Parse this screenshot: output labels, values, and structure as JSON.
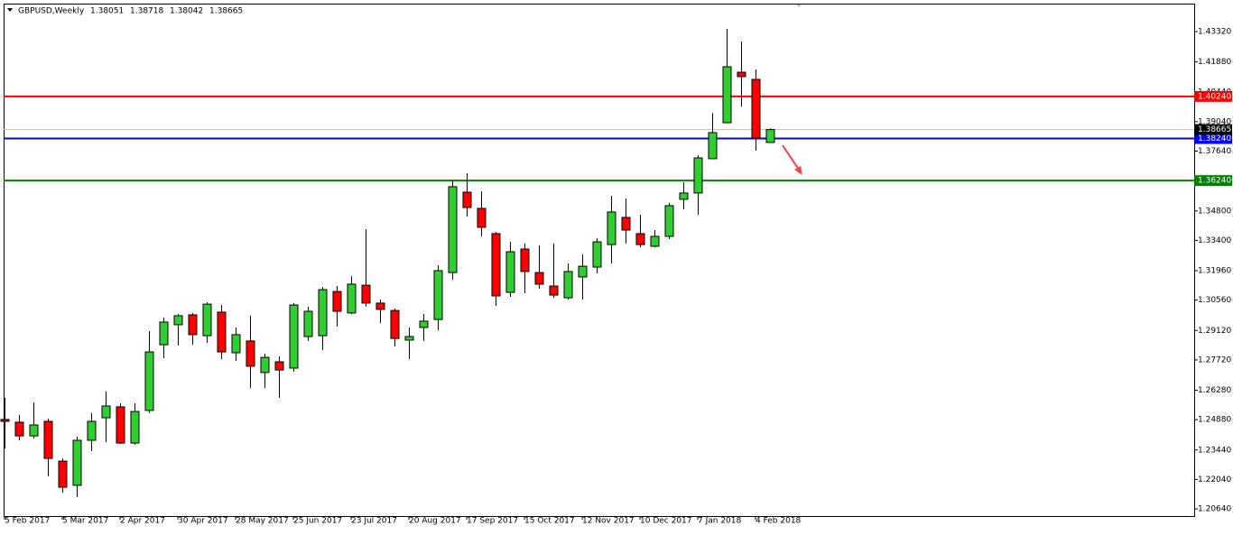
{
  "chart_data": {
    "type": "candlestick",
    "title": "GBPUSD,Weekly",
    "title_ohlc": [
      1.38051,
      1.38718,
      1.38042,
      1.38665
    ],
    "categories": [
      "5 Feb 2017",
      null,
      null,
      null,
      "5 Mar 2017",
      null,
      null,
      null,
      "2 Apr 2017",
      null,
      null,
      null,
      "30 Apr 2017",
      null,
      null,
      null,
      "28 May 2017",
      null,
      null,
      null,
      "25 Jun 2017",
      null,
      null,
      null,
      "23 Jul 2017",
      null,
      null,
      null,
      "20 Aug 2017",
      null,
      null,
      null,
      "17 Sep 2017",
      null,
      null,
      null,
      "15 Oct 2017",
      null,
      null,
      null,
      "12 Nov 2017",
      null,
      null,
      null,
      "10 Dec 2017",
      null,
      null,
      null,
      "7 Jan 2018",
      null,
      null,
      null,
      "4 Feb 2018",
      null
    ],
    "open": [
      1.2489,
      1.2476,
      1.2411,
      1.248,
      1.2291,
      1.2176,
      1.239,
      1.2497,
      1.2549,
      1.2377,
      1.2532,
      1.2844,
      1.2939,
      1.2986,
      1.2887,
      1.2999,
      1.2806,
      1.2862,
      1.2712,
      1.2763,
      1.2733,
      1.2883,
      1.2887,
      1.3097,
      1.2995,
      1.3127,
      1.3042,
      1.3007,
      1.2866,
      1.2926,
      1.2964,
      1.3187,
      1.3569,
      1.3492,
      1.3372,
      1.3093,
      1.3299,
      1.3187,
      1.3123,
      1.3067,
      1.3166,
      1.3213,
      1.332,
      1.3449,
      1.3372,
      1.3312,
      1.3359,
      1.3535,
      1.3565,
      1.3728,
      1.3899,
      1.4139,
      1.4105,
      1.38051
    ],
    "high": [
      1.2592,
      1.251,
      1.257,
      1.2493,
      1.2304,
      1.2407,
      1.2519,
      1.2622,
      1.2566,
      1.2566,
      1.2909,
      1.2973,
      1.299,
      1.2995,
      1.3046,
      1.3033,
      1.2926,
      1.2982,
      1.2801,
      1.2789,
      1.3042,
      1.3025,
      1.3119,
      1.3123,
      1.317,
      1.3393,
      1.3059,
      1.3016,
      1.2926,
      1.299,
      1.3222,
      1.3625,
      1.3659,
      1.3573,
      1.338,
      1.3333,
      1.3325,
      1.3316,
      1.3325,
      1.323,
      1.3273,
      1.335,
      1.3552,
      1.3539,
      1.3462,
      1.3389,
      1.3518,
      1.3616,
      1.3745,
      1.3946,
      1.4345,
      1.4285,
      1.4152,
      1.38718
    ],
    "low": [
      1.2351,
      1.239,
      1.2399,
      1.2219,
      1.2141,
      1.212,
      1.2339,
      1.2381,
      1.2373,
      1.2369,
      1.2519,
      1.278,
      1.284,
      1.2844,
      1.2853,
      1.2776,
      1.2767,
      1.2639,
      1.2639,
      1.2592,
      1.2716,
      1.2862,
      1.2819,
      1.293,
      1.299,
      1.3025,
      1.2947,
      1.2836,
      1.2776,
      1.2862,
      1.2913,
      1.3153,
      1.3453,
      1.3359,
      1.3029,
      1.3072,
      1.3089,
      1.311,
      1.3067,
      1.3059,
      1.3059,
      1.3183,
      1.323,
      1.3325,
      1.3307,
      1.3307,
      1.3346,
      1.3488,
      1.3462,
      1.3728,
      1.3899,
      1.3976,
      1.3766,
      1.38042
    ],
    "close": [
      1.248,
      1.2411,
      1.2463,
      1.2304,
      1.2167,
      1.239,
      1.248,
      1.2553,
      1.2377,
      1.2527,
      1.281,
      1.2952,
      1.2982,
      1.2892,
      1.3037,
      1.281,
      1.2892,
      1.2742,
      1.2784,
      1.2724,
      1.3033,
      1.3003,
      1.3106,
      1.3003,
      1.3132,
      1.3042,
      1.3012,
      1.2874,
      1.2883,
      1.2956,
      1.3196,
      1.3595,
      1.3496,
      1.3402,
      1.3076,
      1.3286,
      1.3192,
      1.3132,
      1.308,
      1.3192,
      1.3217,
      1.3333,
      1.3475,
      1.3389,
      1.332,
      1.3359,
      1.3505,
      1.3565,
      1.3732,
      1.3852,
      1.4165,
      1.4118,
      1.3826,
      1.38665
    ],
    "up_color": "#32cd32",
    "down_color": "#ff0000",
    "ylim": [
      1.203,
      1.4465
    ],
    "yticks": [
      {
        "value": 1.4332,
        "label": "1.43320"
      },
      {
        "value": 1.4188,
        "label": "1.41880"
      },
      {
        "value": 1.4044,
        "label": "1.40440"
      },
      {
        "value": 1.3904,
        "label": "1.39040"
      },
      {
        "value": 1.3764,
        "label": "1.37640"
      },
      {
        "value": 1.3624,
        "label": "1.36240"
      },
      {
        "value": 1.348,
        "label": "1.34800"
      },
      {
        "value": 1.334,
        "label": "1.33400"
      },
      {
        "value": 1.3196,
        "label": "1.31960"
      },
      {
        "value": 1.3056,
        "label": "1.30560"
      },
      {
        "value": 1.2912,
        "label": "1.29120"
      },
      {
        "value": 1.2772,
        "label": "1.27720"
      },
      {
        "value": 1.2628,
        "label": "1.26280"
      },
      {
        "value": 1.2488,
        "label": "1.24880"
      },
      {
        "value": 1.2344,
        "label": "1.23440"
      },
      {
        "value": 1.2204,
        "label": "1.22040"
      },
      {
        "value": 1.2064,
        "label": "1.20640"
      }
    ],
    "levels": [
      {
        "value": 1.4024,
        "label": "1.40240",
        "color": "#ff0000"
      },
      {
        "value": 1.3824,
        "label": "1.38240",
        "color": "#0000ff"
      },
      {
        "value": 1.3624,
        "label": "1.36240",
        "color": "#008000"
      }
    ],
    "current_price": {
      "value": 1.38665,
      "label": "1.38665",
      "color": "#000000"
    }
  }
}
